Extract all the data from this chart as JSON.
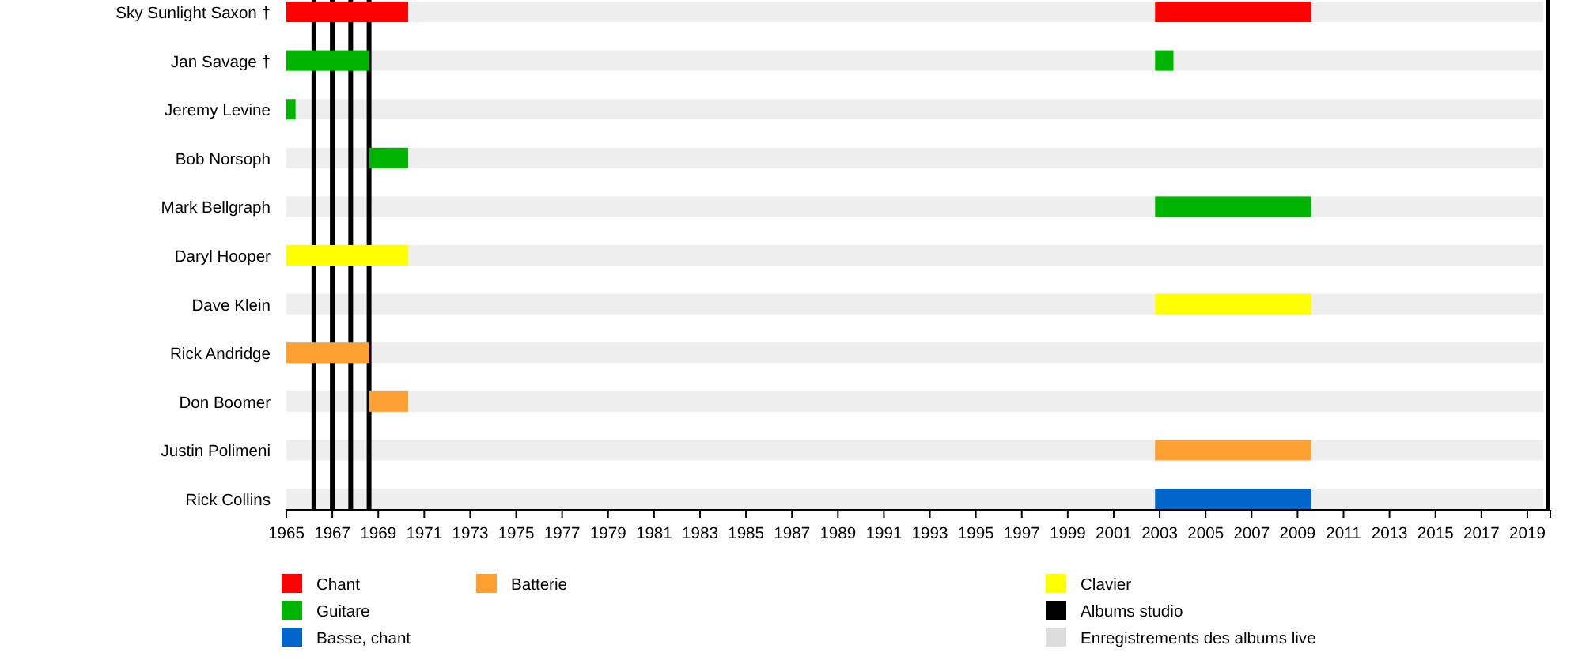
{
  "chart_data": {
    "type": "bar",
    "orientation": "horizontal",
    "categories": [
      "Sky Sunlight Saxon †",
      "Jan Savage †",
      "Jeremy Levine",
      "Bob Norsoph",
      "Mark Bellgraph",
      "Daryl Hooper",
      "Dave Klein",
      "Rick Andridge",
      "Don Boomer",
      "Justin Polimeni",
      "Rick Collins"
    ],
    "series": [
      {
        "color": "#eeeeee",
        "values": [
          54.7,
          54.7,
          54.7,
          54.7,
          54.7,
          54.7,
          54.7,
          54.7,
          54.7,
          54.7,
          54.7
        ],
        "base": [
          1965,
          1965,
          1965,
          1965,
          1965,
          1965,
          1965,
          1965,
          1965,
          1965,
          1965
        ]
      },
      {
        "name": "Chant",
        "color": "#ff0000",
        "values": [
          5.3,
          null,
          null,
          null,
          null,
          null,
          null,
          null,
          null,
          null,
          null
        ],
        "base": [
          1965,
          null,
          null,
          null,
          null,
          null,
          null,
          null,
          null,
          null,
          null
        ]
      },
      {
        "name": "Guitare",
        "color": "#00b300",
        "values": [
          null,
          3.6,
          0.4,
          1.7,
          6.8,
          null,
          null,
          null,
          null,
          null,
          null
        ],
        "base": [
          null,
          1965,
          1965,
          1968.6,
          2002.8,
          null,
          null,
          null,
          null,
          null,
          null
        ]
      },
      {
        "name": "Basse, chant",
        "color": "#0066cc",
        "values": [
          null,
          null,
          null,
          null,
          null,
          null,
          null,
          null,
          null,
          null,
          6.8
        ],
        "base": [
          null,
          null,
          null,
          null,
          null,
          null,
          null,
          null,
          null,
          null,
          2002.8
        ]
      },
      {
        "name": "Batterie",
        "color": "#ffa033",
        "values": [
          null,
          null,
          null,
          null,
          null,
          null,
          null,
          3.6,
          1.7,
          6.8,
          null
        ],
        "base": [
          null,
          null,
          null,
          null,
          null,
          null,
          null,
          1965,
          1968.6,
          2002.8,
          null
        ]
      },
      {
        "name": "Clavier",
        "color": "#ffff00",
        "values": [
          null,
          null,
          null,
          null,
          null,
          5.3,
          6.8,
          null,
          null,
          null,
          null
        ],
        "base": [
          null,
          null,
          null,
          null,
          null,
          1965,
          2002.8,
          null,
          null,
          null,
          null
        ]
      },
      {
        "color": "#ff0000",
        "values": [
          6.8,
          null,
          null,
          null,
          null,
          null,
          null,
          null,
          null,
          null,
          null
        ],
        "base": [
          2002.8,
          null,
          null,
          null,
          null,
          null,
          null,
          null,
          null,
          null,
          null
        ]
      },
      {
        "color": "#00b300",
        "values": [
          null,
          0.8,
          null,
          null,
          null,
          null,
          null,
          null,
          null,
          null,
          null
        ],
        "base": [
          null,
          2002.8,
          null,
          null,
          null,
          null,
          null,
          null,
          null,
          null,
          null
        ]
      },
      {
        "name": "Albums studio",
        "color": "#000000",
        "values": [
          null,
          null,
          null,
          null,
          null,
          null,
          null,
          null,
          null,
          null,
          null
        ]
      },
      {
        "name": "Enregistrements des albums live",
        "color": "#dddddd",
        "values": [
          null,
          null,
          null,
          null,
          null,
          null,
          null,
          null,
          null,
          null,
          null
        ]
      }
    ],
    "xlim": [
      1965,
      2020
    ],
    "xticks": [
      1965,
      1967,
      1969,
      1971,
      1973,
      1975,
      1977,
      1979,
      1981,
      1983,
      1985,
      1987,
      1989,
      1991,
      1993,
      1995,
      1997,
      1999,
      2001,
      2003,
      2005,
      2007,
      2009,
      2011,
      2013,
      2015,
      2017,
      2019,
      {
        "value": 2020,
        "label": null
      }
    ],
    "ref_lines": [
      {
        "axis": "x",
        "value": 1966.2,
        "color": "#000000"
      },
      {
        "axis": "x",
        "value": 1967,
        "color": "#000000"
      },
      {
        "axis": "x",
        "value": 1967.8,
        "color": "#000000"
      },
      {
        "axis": "x",
        "value": 1968.6,
        "color": "#000000"
      }
    ],
    "legend": "bottom"
  }
}
